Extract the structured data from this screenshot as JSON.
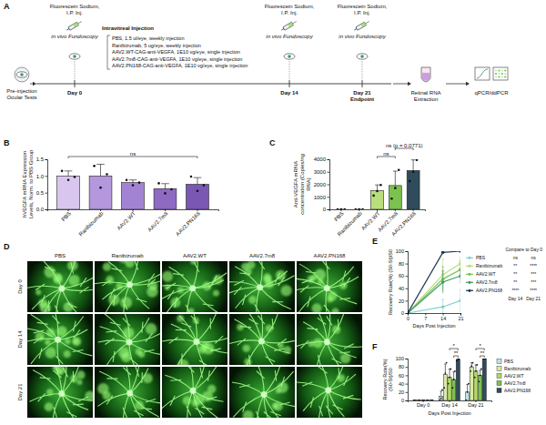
{
  "panel_labels": [
    "A",
    "B",
    "C",
    "D",
    "E",
    "F"
  ],
  "schematic": {
    "pre_injection": "Pre-injection Ocular Tests",
    "timepoints": [
      {
        "day": "Day 0",
        "steps": [
          "Fluorescein Sodium, I.P. Inj.",
          "in vivo Fundoscopy"
        ]
      },
      {
        "day": "Day 14",
        "steps": [
          "Fluorescein Sodium, I.P. Inj.",
          "in vivo Fundoscopy"
        ]
      },
      {
        "day": "Day 21",
        "note": "Endpoint",
        "steps": [
          "Fluorescein Sodium, I.P. Inj.",
          "in vivo Fundoscopy"
        ]
      }
    ],
    "injection": "Intravitreal Injection",
    "treatments": [
      "PBS, 1.5 ul/eye, weekly injection",
      "Ranibizumab, 5 ug/eye, weekly injection",
      "AAV2.WT-CAG-anti-VEGFA, 1E10 vg/eye, single injection",
      "AAV2.7m8-CAG-anti-VEGFA, 1E10 vg/eye, single injection",
      "AAV2.PN168-CAG-anti-VEGFA, 1E10 vg/eye, single injection"
    ],
    "rna_extraction": "Retinal RNA Extraction",
    "assay": "qPCR/ddPCR"
  },
  "fundus": {
    "columns": [
      "PBS",
      "Ranibizumab",
      "AAV2.WT",
      "AAV2.7m8",
      "AAV2.PN168"
    ],
    "rows": [
      "Day 0",
      "Day 14",
      "Day 21"
    ]
  },
  "chart_data": [
    {
      "type": "bar",
      "ylabel": "hVEGFA mRNA Expression Levels, Norm. to PBS Group",
      "categories": [
        "PBS",
        "Ranibizumab",
        "AAV2.WT",
        "AAV2.7m8",
        "AAV2.PN168"
      ],
      "values": [
        1.0,
        1.0,
        0.8,
        0.62,
        0.75
      ],
      "errors": [
        0.15,
        0.35,
        0.08,
        0.15,
        0.2
      ],
      "points": [
        [
          1.15,
          0.88,
          0.97
        ],
        [
          1.3,
          0.65,
          1.05
        ],
        [
          0.88,
          0.72,
          0.8
        ],
        [
          0.78,
          0.48,
          0.6
        ],
        [
          0.98,
          0.55,
          0.72
        ]
      ],
      "colors": [
        "#d9c6ef",
        "#b597dd",
        "#a283d3",
        "#8e6ac3",
        "#7b57b4"
      ],
      "ylim": [
        0,
        1.5
      ],
      "yticks": [
        {
          "value": 0,
          "label": "0.0"
        },
        0.5,
        {
          "value": 1,
          "label": "1.0"
        },
        1.5
      ],
      "annotations": [
        {
          "text": "ns",
          "groups": [
            "PBS",
            "AAV2.PN168"
          ]
        }
      ]
    },
    {
      "type": "bar",
      "ylabel": "Anti-VEGFA mRNA concentration (Copies/ng RNA)",
      "categories": [
        "PBS",
        "Ranibizumab",
        "AAV2.WT",
        "AAV2.7m8",
        "AAV2.PN168"
      ],
      "values": [
        0,
        0,
        1500,
        1900,
        3100
      ],
      "errors": [
        0,
        0,
        450,
        1150,
        850
      ],
      "points": [
        [
          0,
          0,
          0
        ],
        [
          0,
          0,
          0
        ],
        [
          1100,
          1450,
          1950
        ],
        [
          850,
          1700,
          3150
        ],
        [
          2250,
          3000,
          3950
        ]
      ],
      "colors": [
        "#d4ecc0",
        "#b7de8e",
        "#b9de7c",
        "#7cc24e",
        "#2f4b5c"
      ],
      "ylim": [
        0,
        4000
      ],
      "yticks": [
        0,
        1000,
        2000,
        3000,
        4000
      ],
      "annotations": [
        {
          "text": "ns",
          "groups": [
            "AAV2.WT",
            "AAV2.7m8"
          ]
        },
        {
          "text": "ns (p = 0.0771)",
          "groups": [
            "AAV2.7m8",
            "AAV2.PN168"
          ]
        }
      ]
    },
    {
      "type": "line",
      "xlabel": "Days Post Injection",
      "ylabel": "Recovery Rate(%) (S0-St)/S0",
      "x": [
        0,
        14,
        21
      ],
      "xlim": [
        0,
        21
      ],
      "xticks": [
        0,
        7,
        14,
        21
      ],
      "ylim": [
        0,
        100
      ],
      "yticks": [
        0,
        20,
        40,
        60,
        80,
        100
      ],
      "marker": "circle",
      "legend": "right",
      "series": [
        {
          "name": "PBS",
          "color": "#7fd3cf",
          "values": [
            0,
            10,
            20
          ],
          "errors": [
            0,
            12,
            18
          ]
        },
        {
          "name": "Ranibizumab",
          "color": "#b7dd7a",
          "values": [
            0,
            62,
            80
          ],
          "errors": [
            0,
            25,
            10
          ]
        },
        {
          "name": "AAV2.WT",
          "color": "#7cc24e",
          "values": [
            0,
            55,
            70
          ],
          "errors": [
            0,
            20,
            15
          ]
        },
        {
          "name": "AAV2.7m8",
          "color": "#3a9a6a",
          "values": [
            0,
            50,
            60
          ],
          "errors": [
            0,
            18,
            12
          ]
        },
        {
          "name": "AAV2.PN168",
          "color": "#1f3a55",
          "values": [
            0,
            98,
            100
          ],
          "errors": [
            0,
            2,
            0
          ]
        }
      ],
      "stats_table": {
        "title": "Compare to Day 0",
        "columns": [
          "Day 14",
          "Day 21"
        ],
        "rows": [
          [
            "ns",
            "ns"
          ],
          [
            "**",
            "****"
          ],
          [
            "**",
            "***"
          ],
          [
            "**",
            "***"
          ],
          [
            "****",
            "****"
          ]
        ]
      }
    },
    {
      "type": "bar",
      "xlabel": "Days Post Injection",
      "ylabel": "Recovery Rate(%) (S0-St)/S0",
      "categories": [
        "Day 0",
        "Day 14",
        "Day 21"
      ],
      "ylim": [
        0,
        100
      ],
      "yticks": [
        0,
        20,
        40,
        60,
        80,
        100
      ],
      "legend": "right",
      "series": [
        {
          "name": "PBS",
          "color": "#bde5e3",
          "values": [
            0,
            10,
            20
          ],
          "errors": [
            0,
            12,
            18
          ],
          "points": [
            [
              0,
              0,
              0
            ],
            [
              0,
              5,
              25
            ],
            [
              0,
              20,
              40
            ]
          ]
        },
        {
          "name": "Ranibizumab",
          "color": "#dbe9a8",
          "values": [
            0,
            62,
            80
          ],
          "errors": [
            0,
            25,
            10
          ],
          "points": [
            [
              0,
              0,
              0
            ],
            [
              30,
              65,
              90
            ],
            [
              70,
              82,
              90
            ]
          ]
        },
        {
          "name": "AAV2.WT",
          "color": "#b4d86a",
          "values": [
            0,
            55,
            70
          ],
          "errors": [
            0,
            20,
            15
          ],
          "points": [
            [
              0,
              0,
              0
            ],
            [
              40,
              55,
              75
            ],
            [
              55,
              70,
              85
            ]
          ]
        },
        {
          "name": "AAV2.7m8",
          "color": "#7cc24e",
          "values": [
            0,
            50,
            60
          ],
          "errors": [
            0,
            18,
            12
          ],
          "points": [
            [
              0,
              0,
              0
            ],
            [
              30,
              50,
              70
            ],
            [
              45,
              60,
              75
            ]
          ]
        },
        {
          "name": "AAV2.PN168",
          "color": "#2f4b5c",
          "values": [
            0,
            98,
            100
          ],
          "errors": [
            0,
            2,
            0
          ],
          "points": [
            [
              0,
              0,
              0
            ],
            [
              95,
              98,
              100
            ],
            [
              100,
              100,
              100
            ]
          ]
        }
      ],
      "annotations": [
        {
          "text": "**",
          "category": "Day 14",
          "groups": [
            "AAV2.7m8",
            "AAV2.PN168"
          ]
        },
        {
          "text": "*",
          "category": "Day 14",
          "groups": [
            "AAV2.WT",
            "AAV2.PN168"
          ]
        },
        {
          "text": "**",
          "category": "Day 21",
          "groups": [
            "AAV2.7m8",
            "AAV2.PN168"
          ]
        },
        {
          "text": "*",
          "category": "Day 21",
          "groups": [
            "AAV2.WT",
            "AAV2.PN168"
          ]
        }
      ]
    }
  ]
}
